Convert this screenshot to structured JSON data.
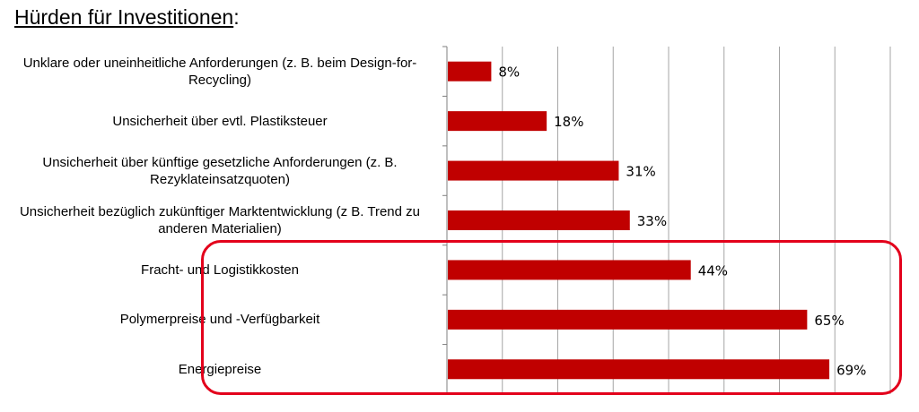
{
  "title": {
    "main": "Hürden für Investitionen",
    "suffix": ":"
  },
  "chart_data": {
    "type": "bar",
    "orientation": "horizontal",
    "title": "Hürden für Investitionen:",
    "categories": [
      "Unklare oder uneinheitliche Anforderungen (z. B. beim Design-for-Recycling)",
      "Unsicherheit über evtl. Plastiksteuer",
      "Unsicherheit über künftige gesetzliche Anforderungen (z. B. Rezyklateinsatzquoten)",
      "Unsicherheit bezüglich zukünftiger Marktentwicklung (z B. Trend zu anderen Materialien)",
      "Fracht- und Logistikkosten",
      "Polymerpreise und -Verfügbarkeit",
      "Energiepreise"
    ],
    "category_lines": [
      [
        "Unklare oder uneinheitliche Anforderungen (z. B. beim Design-for-",
        "Recycling)"
      ],
      [
        "Unsicherheit über evtl. Plastiksteuer"
      ],
      [
        "Unsicherheit über künftige gesetzliche Anforderungen (z. B.",
        "Rezyklateinsatzquoten)"
      ],
      [
        "Unsicherheit bezüglich zukünftiger Marktentwicklung (z B. Trend zu",
        "anderen Materialien)"
      ],
      [
        "Fracht- und Logistikkosten"
      ],
      [
        "Polymerpreise und -Verfügbarkeit"
      ],
      [
        "Energiepreise"
      ]
    ],
    "values": [
      8,
      18,
      31,
      33,
      44,
      65,
      69
    ],
    "value_labels": [
      "8%",
      "18%",
      "31%",
      "33%",
      "44%",
      "65%",
      "69%"
    ],
    "xlim": [
      0,
      80
    ],
    "grid_step": 10,
    "grid": true,
    "xlabel": "",
    "ylabel": "",
    "highlighted_categories": [
      "Fracht- und Logistikkosten",
      "Polymerpreise und -Verfügbarkeit",
      "Energiepreise"
    ],
    "colors": {
      "bar": "#c00000",
      "grid": "#a6a6a6",
      "axis": "#7f7f7f",
      "highlight": "#e3001b"
    }
  }
}
